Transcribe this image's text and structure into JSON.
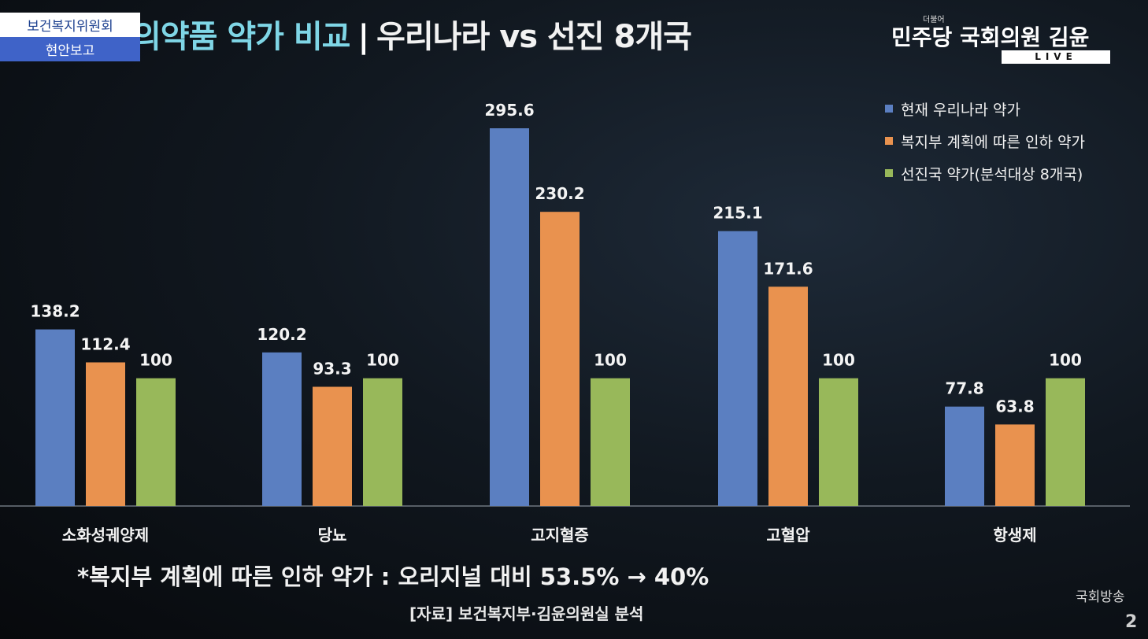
{
  "header": {
    "title_highlight": "의약품 약가 비교",
    "title_separator": "|",
    "title_main": "우리나라 vs 선진 8개국",
    "committee_name": "보건복지위원회",
    "committee_sub": "현안보고",
    "broadcaster_tag": "더불어",
    "broadcaster_name": "민주당 국회의원 김윤",
    "live_label": "LIVE"
  },
  "chart_data": {
    "type": "bar",
    "title": "의약품 약가 비교 | 우리나라 vs 선진 8개국",
    "categories": [
      "소화성궤양제",
      "당뇨",
      "고지혈증",
      "고혈압",
      "항생제"
    ],
    "series": [
      {
        "name": "현재 우리나라 약가",
        "color": "#5b7fc1",
        "values": [
          138.2,
          120.2,
          295.6,
          215.1,
          77.8
        ],
        "labels": [
          "138.2",
          "120.2",
          "295.6",
          "215.1",
          "77.8"
        ]
      },
      {
        "name": "복지부 계획에 따른 인하 약가",
        "color": "#e9924f",
        "values": [
          112.4,
          93.3,
          230.2,
          171.6,
          63.8
        ],
        "labels": [
          "112.4",
          "93.3",
          "230.2",
          "171.6",
          "63.8"
        ]
      },
      {
        "name": "선진국 약가(분석대상 8개국)",
        "color": "#98b85a",
        "values": [
          100,
          100,
          100,
          100,
          100
        ],
        "labels": [
          "100",
          "100",
          "100",
          "100",
          "100"
        ]
      }
    ],
    "ylim": [
      0,
      295.6
    ],
    "grid": false,
    "legend_position": "top-right",
    "xlabel": "",
    "ylabel": ""
  },
  "footnote": "*복지부 계획에 따른 인하 약가 : 오리지널 대비 53.5% → 40%",
  "source": "[자료] 보건복지부·김윤의원실 분석",
  "watermark": "국회방송",
  "page_number": "2"
}
